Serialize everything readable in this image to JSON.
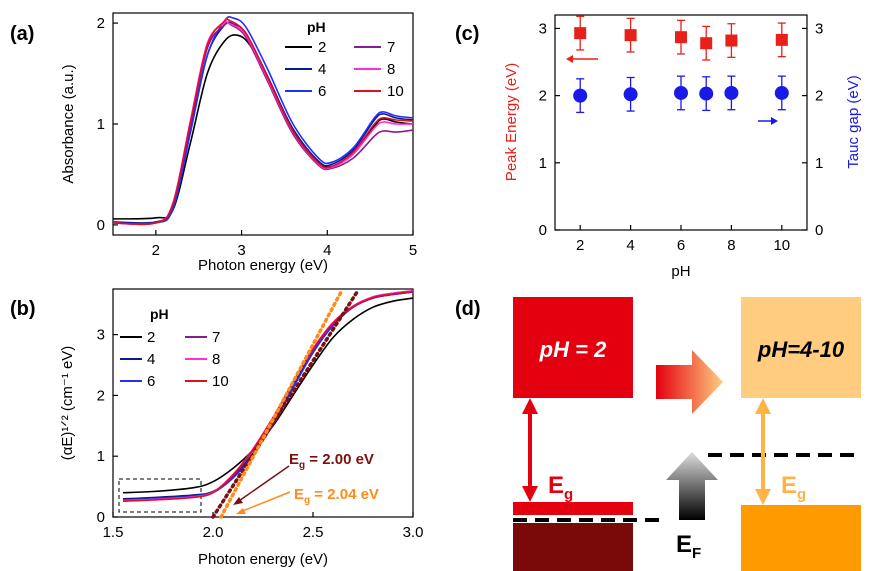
{
  "panel_labels": {
    "a": "(a)",
    "b": "(b)",
    "c": "(c)",
    "d": "(d)"
  },
  "chart_data": [
    {
      "panel": "a",
      "type": "line",
      "xlabel": "Photon energy (eV)",
      "ylabel": "Absorbance (a.u.)",
      "xlim": [
        1.5,
        5
      ],
      "ylim": [
        -0.1,
        2.1
      ],
      "xticks": [
        2,
        3,
        4,
        5
      ],
      "yticks": [
        0,
        1,
        2
      ],
      "legend_title": "pH",
      "legend_position": "top-right",
      "series": [
        {
          "name": "2",
          "color": "#000000",
          "x": [
            1.5,
            2.0,
            2.2,
            2.4,
            2.6,
            2.8,
            2.95,
            3.1,
            3.3,
            3.6,
            3.9,
            4.05,
            4.3,
            4.55,
            4.65,
            4.8,
            5.0
          ],
          "y": [
            0.06,
            0.07,
            0.15,
            0.8,
            1.5,
            1.82,
            1.88,
            1.78,
            1.45,
            0.95,
            0.62,
            0.58,
            0.7,
            0.98,
            1.05,
            1.02,
            1.0
          ]
        },
        {
          "name": "4",
          "color": "#0a1c8c",
          "x": [
            1.5,
            2.0,
            2.2,
            2.4,
            2.6,
            2.8,
            2.9,
            3.05,
            3.3,
            3.6,
            3.9,
            4.05,
            4.3,
            4.55,
            4.65,
            4.8,
            5.0
          ],
          "y": [
            0.03,
            0.03,
            0.18,
            0.92,
            1.68,
            1.98,
            1.99,
            1.9,
            1.48,
            0.95,
            0.63,
            0.6,
            0.74,
            1.04,
            1.1,
            1.06,
            1.04
          ]
        },
        {
          "name": "6",
          "color": "#1f2fff",
          "x": [
            1.5,
            2.0,
            2.2,
            2.4,
            2.6,
            2.8,
            2.9,
            3.05,
            3.3,
            3.6,
            3.9,
            4.05,
            4.3,
            4.55,
            4.65,
            4.8,
            5.0
          ],
          "y": [
            0.02,
            0.02,
            0.16,
            0.9,
            1.68,
            2.02,
            2.05,
            1.96,
            1.55,
            1.0,
            0.66,
            0.62,
            0.76,
            1.06,
            1.12,
            1.08,
            1.06
          ]
        },
        {
          "name": "7",
          "color": "#8b1a8b",
          "x": [
            1.5,
            2.0,
            2.2,
            2.4,
            2.6,
            2.8,
            2.88,
            3.05,
            3.3,
            3.6,
            3.9,
            4.05,
            4.3,
            4.55,
            4.65,
            4.8,
            5.0
          ],
          "y": [
            0.02,
            0.02,
            0.2,
            0.98,
            1.75,
            1.98,
            1.98,
            1.86,
            1.43,
            0.9,
            0.59,
            0.56,
            0.66,
            0.88,
            0.93,
            0.92,
            0.94
          ]
        },
        {
          "name": "8",
          "color": "#ff2fd8",
          "x": [
            1.5,
            2.0,
            2.2,
            2.4,
            2.6,
            2.8,
            2.85,
            3.05,
            3.3,
            3.6,
            3.9,
            4.05,
            4.3,
            4.55,
            4.65,
            4.8,
            5.0
          ],
          "y": [
            0.02,
            0.02,
            0.22,
            1.02,
            1.8,
            2.0,
            2.0,
            1.88,
            1.45,
            0.92,
            0.6,
            0.57,
            0.7,
            0.96,
            1.02,
            1.0,
            1.0
          ]
        },
        {
          "name": "10",
          "color": "#e01020",
          "x": [
            1.5,
            2.0,
            2.2,
            2.4,
            2.6,
            2.8,
            2.85,
            3.05,
            3.3,
            3.6,
            3.9,
            4.05,
            4.3,
            4.55,
            4.65,
            4.8,
            5.0
          ],
          "y": [
            0.02,
            0.02,
            0.21,
            1.0,
            1.78,
            2.02,
            2.03,
            1.9,
            1.47,
            0.93,
            0.61,
            0.58,
            0.72,
            1.0,
            1.06,
            1.04,
            1.03
          ]
        }
      ]
    },
    {
      "panel": "b",
      "type": "line",
      "xlabel": "Photon energy (eV)",
      "ylabel": "(αE)¹ᐟ² (cm⁻¹ eV)",
      "xlim": [
        1.5,
        3.0
      ],
      "ylim": [
        0,
        3.75
      ],
      "xticks": [
        1.5,
        2.0,
        2.5,
        3.0
      ],
      "yticks": [
        0,
        1,
        2,
        3
      ],
      "legend_title": "pH",
      "legend_position": "top-left",
      "series": [
        {
          "name": "2",
          "color": "#000000",
          "x": [
            1.55,
            1.7,
            1.9,
            2.0,
            2.1,
            2.2,
            2.3,
            2.4,
            2.5,
            2.6,
            2.7,
            2.8,
            2.9,
            3.0
          ],
          "y": [
            0.4,
            0.42,
            0.48,
            0.58,
            0.8,
            1.1,
            1.5,
            2.0,
            2.5,
            2.95,
            3.25,
            3.45,
            3.55,
            3.6
          ]
        },
        {
          "name": "4",
          "color": "#0a1c8c",
          "x": [
            1.55,
            1.7,
            1.9,
            2.0,
            2.1,
            2.2,
            2.3,
            2.4,
            2.5,
            2.6,
            2.7,
            2.8,
            2.9,
            3.0
          ],
          "y": [
            0.3,
            0.32,
            0.36,
            0.42,
            0.66,
            1.05,
            1.55,
            2.15,
            2.72,
            3.15,
            3.45,
            3.6,
            3.66,
            3.7
          ]
        },
        {
          "name": "6",
          "color": "#1f2fff",
          "x": [
            1.55,
            1.7,
            1.9,
            2.0,
            2.1,
            2.2,
            2.3,
            2.4,
            2.5,
            2.6,
            2.7,
            2.8,
            2.9,
            3.0
          ],
          "y": [
            0.28,
            0.3,
            0.34,
            0.4,
            0.64,
            1.02,
            1.52,
            2.12,
            2.7,
            3.15,
            3.45,
            3.62,
            3.68,
            3.72
          ]
        },
        {
          "name": "7",
          "color": "#8b1a8b",
          "x": [
            1.55,
            1.7,
            1.9,
            2.0,
            2.1,
            2.2,
            2.3,
            2.4,
            2.5,
            2.6,
            2.7,
            2.8,
            2.9,
            3.0
          ],
          "y": [
            0.27,
            0.29,
            0.33,
            0.4,
            0.68,
            1.1,
            1.62,
            2.2,
            2.75,
            3.18,
            3.45,
            3.6,
            3.66,
            3.7
          ]
        },
        {
          "name": "8",
          "color": "#ff2fd8",
          "x": [
            1.55,
            1.7,
            1.9,
            2.0,
            2.1,
            2.2,
            2.3,
            2.4,
            2.5,
            2.6,
            2.7,
            2.8,
            2.9,
            3.0
          ],
          "y": [
            0.27,
            0.29,
            0.33,
            0.41,
            0.7,
            1.12,
            1.64,
            2.22,
            2.77,
            3.2,
            3.47,
            3.62,
            3.68,
            3.72
          ]
        },
        {
          "name": "10",
          "color": "#e01020",
          "x": [
            1.55,
            1.7,
            1.9,
            2.0,
            2.1,
            2.2,
            2.3,
            2.4,
            2.5,
            2.6,
            2.7,
            2.8,
            2.9,
            3.0
          ],
          "y": [
            0.26,
            0.28,
            0.32,
            0.4,
            0.69,
            1.11,
            1.63,
            2.21,
            2.76,
            3.19,
            3.46,
            3.61,
            3.67,
            3.71
          ]
        }
      ],
      "fit_lines": [
        {
          "color": "#7a1010",
          "x": [
            2.0,
            2.72
          ],
          "y": [
            0,
            3.7
          ],
          "label": "E_g = 2.00 eV",
          "label_color": "#7a1010"
        },
        {
          "color": "#ff8c1a",
          "x": [
            2.04,
            2.64
          ],
          "y": [
            0,
            3.7
          ],
          "label": "E_g = 2.04 eV",
          "label_color": "#ff8c1a"
        }
      ],
      "label_1": {
        "prefix": "E",
        "sub": "g",
        "suffix": " = 2.00 eV"
      },
      "label_2": {
        "prefix": "E",
        "sub": "g",
        "suffix": " = 2.04 eV"
      }
    },
    {
      "panel": "c",
      "type": "scatter",
      "xlabel": "pH",
      "ylabel_left": "Peak Energy (eV)",
      "ylabel_right": "Tauc gap (eV)",
      "xlim": [
        1,
        11
      ],
      "ylim": [
        0,
        3.2
      ],
      "xticks": [
        2,
        4,
        6,
        8,
        10
      ],
      "yticks": [
        0,
        1,
        2,
        3
      ],
      "series": [
        {
          "name": "Peak Energy",
          "marker": "square",
          "color": "#e8201a",
          "axis": "left",
          "x": [
            2,
            4,
            6,
            7,
            8,
            10
          ],
          "y": [
            2.93,
            2.9,
            2.87,
            2.78,
            2.82,
            2.83
          ],
          "err": [
            0.25,
            0.25,
            0.25,
            0.25,
            0.25,
            0.25
          ]
        },
        {
          "name": "Tauc gap",
          "marker": "circle",
          "color": "#1a1ae8",
          "axis": "right",
          "x": [
            2,
            4,
            6,
            7,
            8,
            10
          ],
          "y": [
            2.0,
            2.02,
            2.04,
            2.03,
            2.04,
            2.04
          ],
          "err": [
            0.25,
            0.25,
            0.25,
            0.25,
            0.25,
            0.25
          ]
        }
      ]
    }
  ],
  "diagram_d": {
    "box_left_label": "pH = 2",
    "box_right_label": "pH=4-10",
    "eg_left": {
      "prefix": "E",
      "sub": "g"
    },
    "eg_right": {
      "prefix": "E",
      "sub": "g"
    },
    "ef": {
      "prefix": "E",
      "sub": "F"
    },
    "colors": {
      "left_top": "#e3000f",
      "left_band": "#e3000f",
      "left_bottom": "#7a0a0a",
      "right_top": "#ffcc80",
      "right_bottom": "#ff9a00",
      "arrow_left": "#e3000f",
      "arrow_right": "#ffb347"
    }
  }
}
